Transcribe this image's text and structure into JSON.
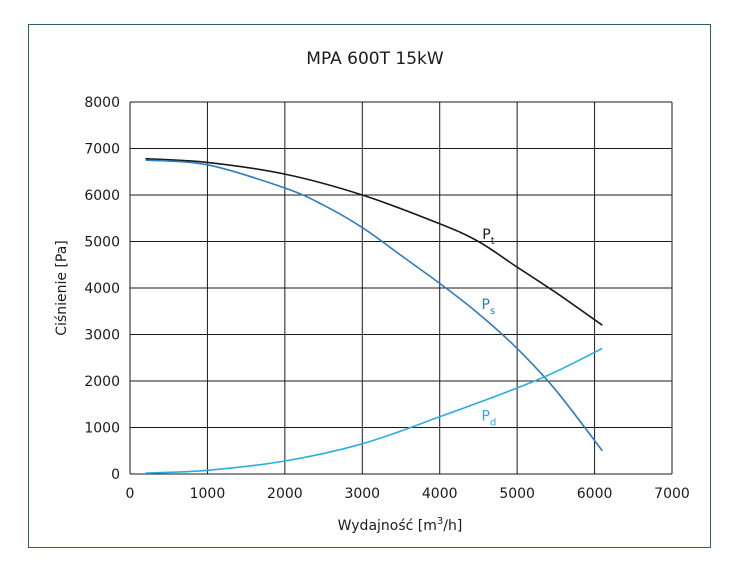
{
  "chart_data": {
    "type": "line",
    "title": "MPA 600T 15kW",
    "xlabel": {
      "prefix": "Wydajność [m",
      "sup": "3",
      "suffix": "/h]"
    },
    "ylabel": "Ciśnienie [Pa]",
    "xlim": [
      0,
      7000
    ],
    "ylim": [
      0,
      8000
    ],
    "x_ticks": [
      0,
      1000,
      2000,
      3000,
      4000,
      5000,
      6000,
      7000
    ],
    "y_ticks": [
      0,
      1000,
      2000,
      3000,
      4000,
      5000,
      6000,
      7000,
      8000
    ],
    "grid": true,
    "series": [
      {
        "label": {
          "base": "P",
          "sub": "t"
        },
        "color": "#1a1a1a",
        "label_at": [
          4550,
          5050
        ],
        "points": [
          [
            200,
            6780
          ],
          [
            1000,
            6700
          ],
          [
            2000,
            6450
          ],
          [
            3000,
            6000
          ],
          [
            4000,
            5380
          ],
          [
            4500,
            5000
          ],
          [
            5000,
            4450
          ],
          [
            5500,
            3900
          ],
          [
            6100,
            3200
          ]
        ]
      },
      {
        "label": {
          "base": "P",
          "sub": "s"
        },
        "color": "#2e7bbf",
        "label_at": [
          4540,
          3550
        ],
        "points": [
          [
            200,
            6750
          ],
          [
            1000,
            6650
          ],
          [
            2000,
            6150
          ],
          [
            2500,
            5780
          ],
          [
            3000,
            5300
          ],
          [
            3500,
            4700
          ],
          [
            4000,
            4100
          ],
          [
            4500,
            3450
          ],
          [
            5000,
            2700
          ],
          [
            5500,
            1800
          ],
          [
            6100,
            500
          ]
        ]
      },
      {
        "label": {
          "base": "P",
          "sub": "d"
        },
        "color": "#2aaee0",
        "label_at": [
          4540,
          1150
        ],
        "points": [
          [
            200,
            20
          ],
          [
            1000,
            80
          ],
          [
            2000,
            280
          ],
          [
            3000,
            650
          ],
          [
            4000,
            1230
          ],
          [
            5000,
            1850
          ],
          [
            5500,
            2200
          ],
          [
            6100,
            2700
          ]
        ]
      }
    ]
  }
}
